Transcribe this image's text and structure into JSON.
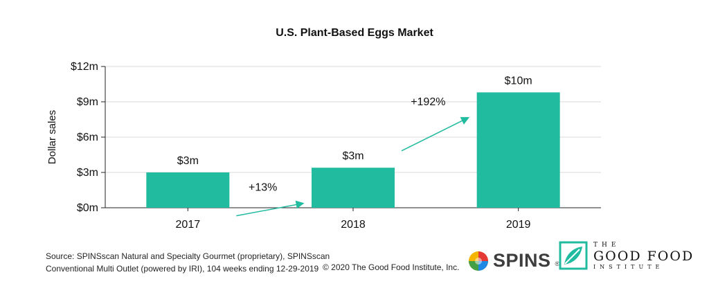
{
  "chart_data": {
    "type": "bar",
    "title": "U.S. Plant-Based Eggs Market",
    "ylabel": "Dollar sales",
    "xlabel": "",
    "categories": [
      "2017",
      "2018",
      "2019"
    ],
    "values": [
      3.0,
      3.4,
      9.8
    ],
    "data_labels": [
      "$3m",
      "$3m",
      "$10m"
    ],
    "ylim": [
      0,
      12
    ],
    "yticks": [
      0,
      3,
      6,
      9,
      12
    ],
    "ytick_labels": [
      "$0m",
      "$3m",
      "$6m",
      "$9m",
      "$12m"
    ],
    "grid": true,
    "bar_color": "#21bba0",
    "arrow_color": "#21bba0",
    "annotations": [
      {
        "text": "+13%",
        "between": [
          "2017",
          "2018"
        ]
      },
      {
        "text": "+192%",
        "between": [
          "2018",
          "2019"
        ]
      }
    ]
  },
  "footer": {
    "source_line1": "Source: SPINSscan Natural and Specialty Gourmet (proprietary), SPINSscan",
    "source_line2": "Conventional Multi Outlet (powered by IRI), 104 weeks ending 12-29-2019",
    "copyright": "© 2020 The Good Food Institute, Inc."
  },
  "logos": {
    "spins": "SPINS",
    "spins_reg": "®",
    "gfi_the": "THE",
    "gfi_main": "GOOD FOOD",
    "gfi_institute": "INSTITUTE",
    "gfi_color": "#21bba0"
  }
}
